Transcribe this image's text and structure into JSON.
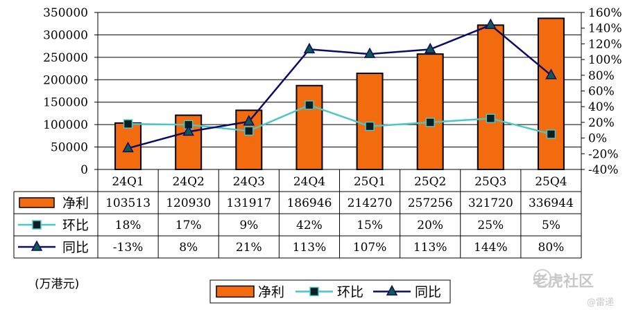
{
  "chart_data": {
    "type": "bar",
    "categories": [
      "24Q1",
      "24Q2",
      "24Q3",
      "24Q4",
      "25Q1",
      "25Q2",
      "25Q3",
      "25Q4"
    ],
    "y_left": {
      "ticks": [
        "0",
        "50000",
        "100000",
        "150000",
        "200000",
        "250000",
        "300000",
        "350000"
      ],
      "ylim": [
        0,
        350000
      ]
    },
    "y_right": {
      "ticks": [
        "-40%",
        "-20%",
        "0%",
        "20%",
        "40%",
        "60%",
        "80%",
        "100%",
        "120%",
        "140%",
        "160%"
      ],
      "ylim": [
        -40,
        160
      ]
    },
    "series": [
      {
        "name": "净利",
        "kind": "bar",
        "axis": "left",
        "color": "#f26b0f",
        "values": [
          103513,
          120930,
          131917,
          186946,
          214270,
          257256,
          321720,
          336944
        ],
        "labels": [
          "103513",
          "120930",
          "131917",
          "186946",
          "214270",
          "257256",
          "321720",
          "336944"
        ]
      },
      {
        "name": "环比",
        "kind": "line",
        "axis": "right",
        "color": "#4cc6c6",
        "marker": "square",
        "values": [
          18,
          17,
          9,
          42,
          15,
          20,
          25,
          5
        ],
        "labels": [
          "18%",
          "17%",
          "9%",
          "42%",
          "15%",
          "20%",
          "25%",
          "5%"
        ]
      },
      {
        "name": "同比",
        "kind": "line",
        "axis": "right",
        "color": "#0c0c66",
        "marker": "triangle",
        "values": [
          -13,
          8,
          21,
          113,
          107,
          113,
          144,
          80
        ],
        "labels": [
          "-13%",
          "8%",
          "21%",
          "113%",
          "107%",
          "113%",
          "144%",
          "80%"
        ]
      }
    ],
    "unit_note": "(万港元)"
  },
  "watermark": {
    "brand": "老虎社区",
    "author": "@雷递"
  }
}
